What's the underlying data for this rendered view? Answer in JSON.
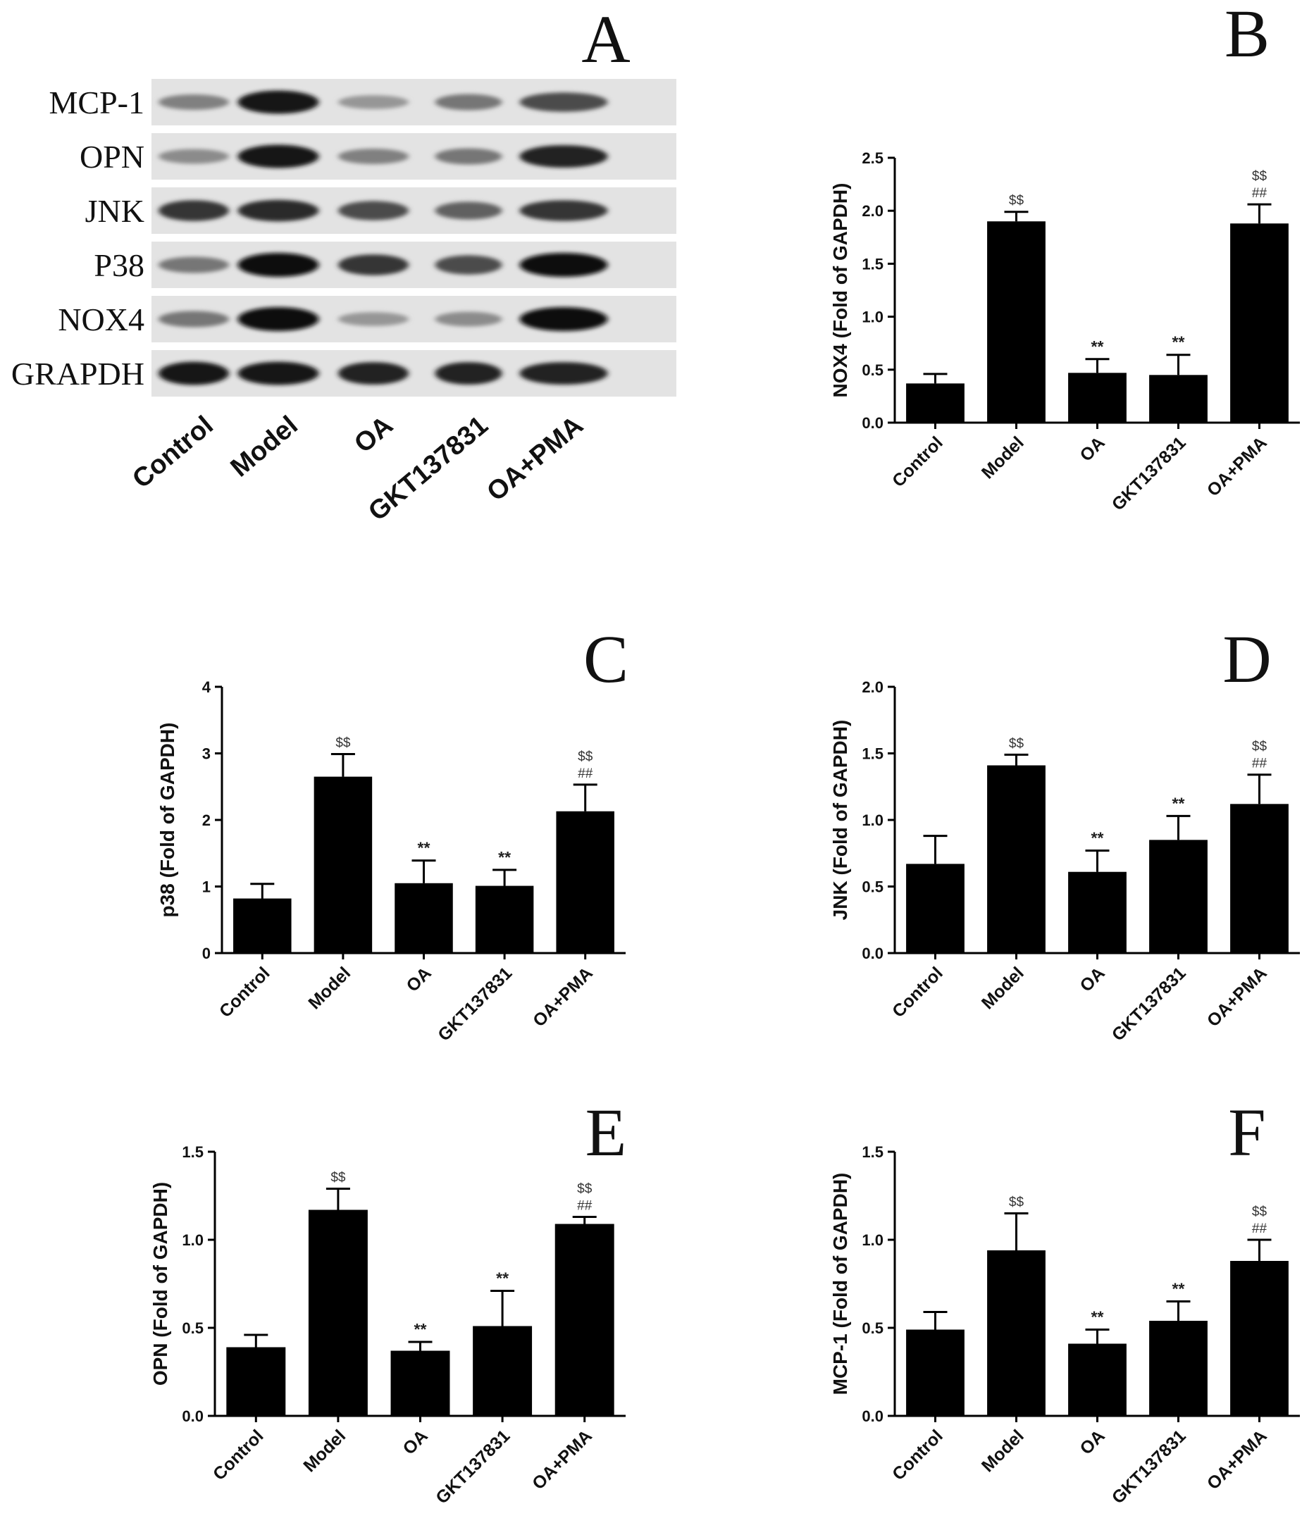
{
  "blot": {
    "letter": "A",
    "proteins": [
      "MCP-1",
      "OPN",
      "JNK",
      "P38",
      "NOX4",
      "GRAPDH"
    ],
    "lanes": [
      "Control",
      "Model",
      "OA",
      "GKT137831",
      "OA+PMA"
    ],
    "intensity": [
      [
        0.45,
        0.95,
        0.35,
        0.5,
        0.7
      ],
      [
        0.4,
        0.95,
        0.45,
        0.5,
        0.9
      ],
      [
        0.8,
        0.85,
        0.7,
        0.6,
        0.8
      ],
      [
        0.5,
        1.0,
        0.8,
        0.7,
        1.0
      ],
      [
        0.5,
        1.0,
        0.35,
        0.4,
        1.0
      ],
      [
        0.95,
        0.95,
        0.9,
        0.9,
        0.9
      ]
    ]
  },
  "chart_data": [
    {
      "type": "bar",
      "letter": "B",
      "categories": [
        "Control",
        "Model",
        "OA",
        "GKT137831",
        "OA+PMA"
      ],
      "values": [
        0.37,
        1.9,
        0.47,
        0.45,
        1.88
      ],
      "errors": [
        0.09,
        0.09,
        0.13,
        0.19,
        0.18
      ],
      "annotations": [
        [],
        [
          "$$"
        ],
        [
          "**"
        ],
        [
          "**"
        ],
        [
          "$$",
          "##"
        ]
      ],
      "ylabel": "NOX4 (Fold of GAPDH)",
      "ylim": [
        0,
        2.5
      ],
      "yticks": [
        "0.0",
        "0.5",
        "1.0",
        "1.5",
        "2.0",
        "2.5"
      ]
    },
    {
      "type": "bar",
      "letter": "C",
      "categories": [
        "Control",
        "Model",
        "OA",
        "GKT137831",
        "OA+PMA"
      ],
      "values": [
        0.82,
        2.65,
        1.05,
        1.01,
        2.13
      ],
      "errors": [
        0.22,
        0.34,
        0.34,
        0.24,
        0.4
      ],
      "annotations": [
        [],
        [
          "$$"
        ],
        [
          "**"
        ],
        [
          "**"
        ],
        [
          "$$",
          "##"
        ]
      ],
      "ylabel": "p38 (Fold of GAPDH)",
      "ylim": [
        0,
        4
      ],
      "yticks": [
        "0",
        "1",
        "2",
        "3",
        "4"
      ]
    },
    {
      "type": "bar",
      "letter": "D",
      "categories": [
        "Control",
        "Model",
        "OA",
        "GKT137831",
        "OA+PMA"
      ],
      "values": [
        0.67,
        1.41,
        0.61,
        0.85,
        1.12
      ],
      "errors": [
        0.21,
        0.08,
        0.16,
        0.18,
        0.22
      ],
      "annotations": [
        [],
        [
          "$$"
        ],
        [
          "**"
        ],
        [
          "**"
        ],
        [
          "$$",
          "##"
        ]
      ],
      "ylabel": "JNK (Fold of GAPDH)",
      "ylim": [
        0,
        2.0
      ],
      "yticks": [
        "0.0",
        "0.5",
        "1.0",
        "1.5",
        "2.0"
      ]
    },
    {
      "type": "bar",
      "letter": "E",
      "categories": [
        "Control",
        "Model",
        "OA",
        "GKT137831",
        "OA+PMA"
      ],
      "values": [
        0.39,
        1.17,
        0.37,
        0.51,
        1.09
      ],
      "errors": [
        0.07,
        0.12,
        0.05,
        0.2,
        0.04
      ],
      "annotations": [
        [],
        [
          "$$"
        ],
        [
          "**"
        ],
        [
          "**"
        ],
        [
          "$$",
          "##"
        ]
      ],
      "ylabel": "OPN (Fold of GAPDH)",
      "ylim": [
        0,
        1.5
      ],
      "yticks": [
        "0.0",
        "0.5",
        "1.0",
        "1.5"
      ]
    },
    {
      "type": "bar",
      "letter": "F",
      "categories": [
        "Control",
        "Model",
        "OA",
        "GKT137831",
        "OA+PMA"
      ],
      "values": [
        0.49,
        0.94,
        0.41,
        0.54,
        0.88
      ],
      "errors": [
        0.1,
        0.21,
        0.08,
        0.11,
        0.12
      ],
      "annotations": [
        [],
        [
          "$$"
        ],
        [
          "**"
        ],
        [
          "**"
        ],
        [
          "$$",
          "##"
        ]
      ],
      "ylabel": "MCP-1 (Fold of GAPDH)",
      "ylim": [
        0,
        1.5
      ],
      "yticks": [
        "0.0",
        "0.5",
        "1.0",
        "1.5"
      ]
    }
  ]
}
